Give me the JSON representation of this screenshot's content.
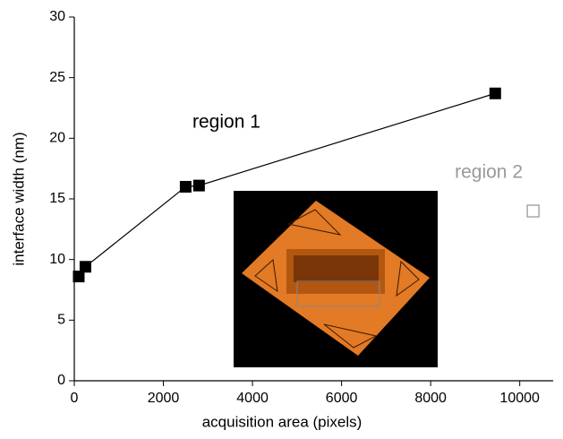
{
  "chart_data": {
    "type": "scatter",
    "x_label": "acquisition area (pixels)",
    "y_label": "interface width (nm)",
    "xlim": [
      0,
      10750
    ],
    "ylim": [
      0,
      30
    ],
    "xticks": [
      0,
      2000,
      4000,
      6000,
      8000,
      10000
    ],
    "yticks": [
      0,
      5,
      10,
      15,
      20,
      25,
      30
    ],
    "series": [
      {
        "name": "region 1",
        "color": "#000000",
        "marker": "filled-square",
        "line": true,
        "x": [
          100,
          250,
          2500,
          2800,
          9450
        ],
        "values": [
          8.6,
          9.4,
          16.0,
          16.1,
          23.7
        ]
      },
      {
        "name": "region 2",
        "color": "#999999",
        "marker": "open-square",
        "line": false,
        "x": [
          10300
        ],
        "values": [
          14.0
        ]
      }
    ]
  }
}
